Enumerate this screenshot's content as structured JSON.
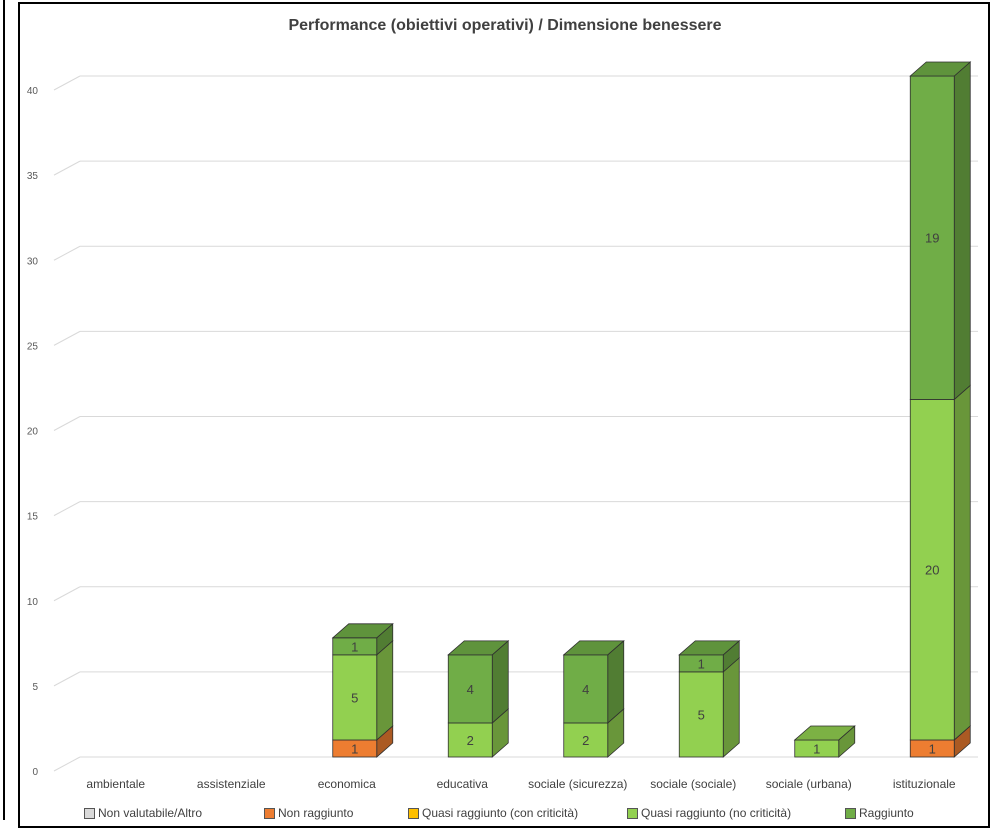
{
  "chart_data": {
    "type": "bar",
    "stacked": true,
    "style": "3d-column",
    "title": "Performance (obiettivi operativi) / Dimensione benessere",
    "categories": [
      "ambientale",
      "assistenziale",
      "economica",
      "educativa",
      "sociale (sicurezza)",
      "sociale (sociale)",
      "sociale (urbana)",
      "istituzionale"
    ],
    "ylim": [
      0,
      40
    ],
    "yticks": [
      0,
      5,
      10,
      15,
      20,
      25,
      30,
      35,
      40
    ],
    "grid": true,
    "legend_position": "bottom",
    "series": [
      {
        "name": "Non valutabile/Altro",
        "color": "#d9d9d9",
        "values": [
          0,
          0,
          0,
          0,
          0,
          0,
          0,
          0
        ]
      },
      {
        "name": "Non raggiunto",
        "color": "#ed7d31",
        "values": [
          0,
          0,
          1,
          0,
          0,
          0,
          0,
          1
        ]
      },
      {
        "name": "Quasi raggiunto (con criticità)",
        "color": "#ffc000",
        "values": [
          0,
          0,
          0,
          0,
          0,
          0,
          0,
          0
        ]
      },
      {
        "name": "Quasi raggiunto (no criticità)",
        "color": "#92d050",
        "values": [
          0,
          0,
          5,
          2,
          2,
          5,
          1,
          20
        ]
      },
      {
        "name": "Raggiunto",
        "color": "#70ad47",
        "values": [
          0,
          0,
          1,
          4,
          4,
          1,
          0,
          19
        ]
      }
    ]
  }
}
